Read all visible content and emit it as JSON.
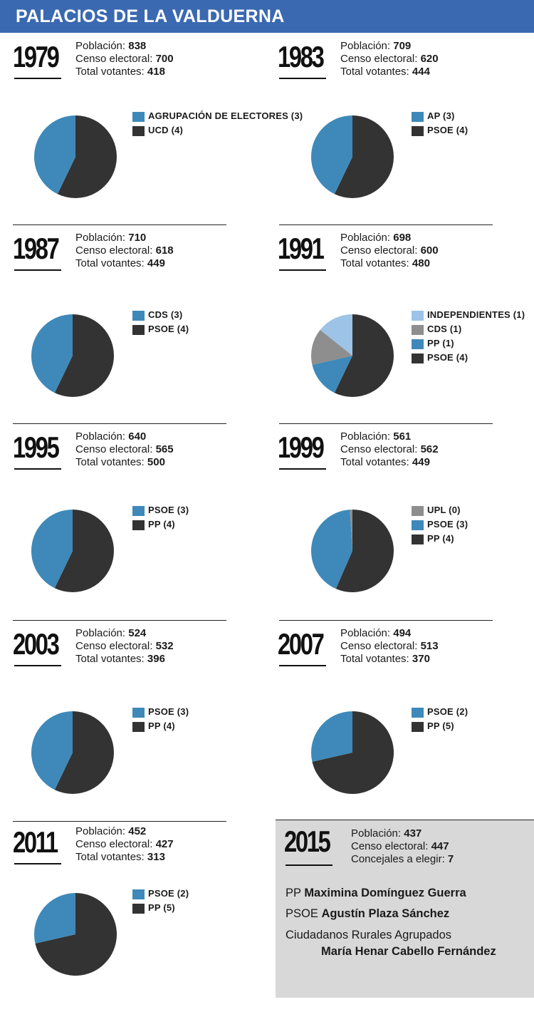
{
  "header": {
    "title": "PALACIOS DE LA VALDUERNA"
  },
  "stat_labels": {
    "poblacion": "Población:",
    "censo": "Censo electoral:",
    "votantes": "Total votantes:",
    "concejales": "Concejales a elegir:"
  },
  "colors": {
    "header": "#3a69b1",
    "blue": "#3e89b9",
    "dark": "#333333",
    "gray": "#8e8e8e",
    "lightblue": "#9dc3e6",
    "box": "#d8d8d8"
  },
  "chart_data": [
    {
      "type": "pie",
      "year": "1979",
      "poblacion": "838",
      "censo": "700",
      "votantes": "418",
      "categories": [
        "AGRUPACIÓN DE ELECTORES (3)",
        "UCD (4)"
      ],
      "values": [
        3,
        4
      ],
      "colors": [
        "#3e89b9",
        "#333333"
      ]
    },
    {
      "type": "pie",
      "year": "1983",
      "poblacion": "709",
      "censo": "620",
      "votantes": "444",
      "categories": [
        "AP (3)",
        "PSOE (4)"
      ],
      "values": [
        3,
        4
      ],
      "colors": [
        "#3e89b9",
        "#333333"
      ]
    },
    {
      "type": "pie",
      "year": "1987",
      "poblacion": "710",
      "censo": "618",
      "votantes": "449",
      "categories": [
        "CDS (3)",
        "PSOE (4)"
      ],
      "values": [
        3,
        4
      ],
      "colors": [
        "#3e89b9",
        "#333333"
      ]
    },
    {
      "type": "pie",
      "year": "1991",
      "poblacion": "698",
      "censo": "600",
      "votantes": "480",
      "categories": [
        "INDEPENDIENTES (1)",
        "CDS (1)",
        "PP (1)",
        "PSOE (4)"
      ],
      "values": [
        1,
        1,
        1,
        4
      ],
      "colors": [
        "#9dc3e6",
        "#8e8e8e",
        "#3e89b9",
        "#333333"
      ]
    },
    {
      "type": "pie",
      "year": "1995",
      "poblacion": "640",
      "censo": "565",
      "votantes": "500",
      "categories": [
        "PSOE (3)",
        "PP (4)"
      ],
      "values": [
        3,
        4
      ],
      "colors": [
        "#3e89b9",
        "#333333"
      ]
    },
    {
      "type": "pie",
      "year": "1999",
      "poblacion": "561",
      "censo": "562",
      "votantes": "449",
      "categories": [
        "UPL (0)",
        "PSOE (3)",
        "PP (4)"
      ],
      "values": [
        0.07,
        3,
        4
      ],
      "colors": [
        "#8e8e8e",
        "#3e89b9",
        "#333333"
      ]
    },
    {
      "type": "pie",
      "year": "2003",
      "poblacion": "524",
      "censo": "532",
      "votantes": "396",
      "categories": [
        "PSOE (3)",
        "PP (4)"
      ],
      "values": [
        3,
        4
      ],
      "colors": [
        "#3e89b9",
        "#333333"
      ]
    },
    {
      "type": "pie",
      "year": "2007",
      "poblacion": "494",
      "censo": "513",
      "votantes": "370",
      "categories": [
        "PSOE (2)",
        "PP (5)"
      ],
      "values": [
        2,
        5
      ],
      "colors": [
        "#3e89b9",
        "#333333"
      ]
    },
    {
      "type": "pie",
      "year": "2011",
      "poblacion": "452",
      "censo": "427",
      "votantes": "313",
      "categories": [
        "PSOE (2)",
        "PP (5)"
      ],
      "values": [
        2,
        5
      ],
      "colors": [
        "#3e89b9",
        "#333333"
      ]
    }
  ],
  "box2015": {
    "year": "2015",
    "poblacion": "437",
    "censo": "447",
    "concejales": "7",
    "candidates": [
      {
        "party": "PP",
        "name": "Maximina Domínguez Guerra"
      },
      {
        "party": "PSOE",
        "name": "Agustín Plaza Sánchez"
      },
      {
        "party": "Ciudadanos Rurales Agrupados",
        "name": "María Henar Cabello Fernández"
      }
    ]
  }
}
